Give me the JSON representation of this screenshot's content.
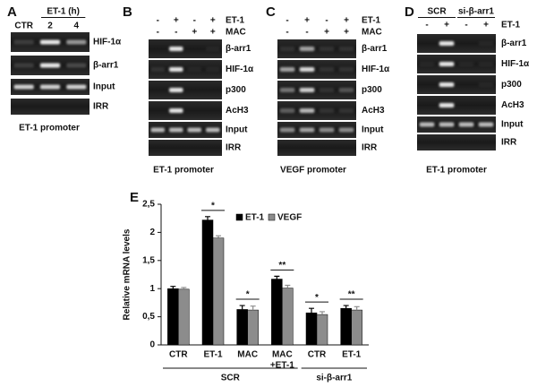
{
  "panels": [
    {
      "letter": "A",
      "title": "ET-1 (h)",
      "lanes": [
        "CTR",
        "2",
        "4"
      ],
      "rows": [
        "HIF-1α",
        "β-arr1",
        "Input",
        "IRR"
      ],
      "footer": "ET-1 promoter"
    },
    {
      "letter": "B",
      "conditions": [
        {
          "label": "ET-1",
          "signs": [
            "-",
            "+",
            "-",
            "+"
          ]
        },
        {
          "label": "MAC",
          "signs": [
            "-",
            "-",
            "+",
            "+"
          ]
        }
      ],
      "rows": [
        "β-arr1",
        "HIF-1α",
        "p300",
        "AcH3",
        "Input",
        "IRR"
      ],
      "footer": "ET-1 promoter"
    },
    {
      "letter": "C",
      "conditions": [
        {
          "label": "ET-1",
          "signs": [
            "-",
            "+",
            "-",
            "+"
          ]
        },
        {
          "label": "MAC",
          "signs": [
            "-",
            "-",
            "+",
            "+"
          ]
        }
      ],
      "rows": [
        "β-arr1",
        "HIF-1α",
        "p300",
        "AcH3",
        "Input",
        "IRR"
      ],
      "footer": "VEGF promoter"
    },
    {
      "letter": "D",
      "groups": [
        "SCR",
        "si-β-arr1"
      ],
      "conditions": [
        {
          "label": "ET-1",
          "signs": [
            "-",
            "+",
            "-",
            "+"
          ]
        }
      ],
      "rows": [
        "β-arr1",
        "HIF-1α",
        "p300",
        "AcH3",
        "Input",
        "IRR"
      ],
      "footer": "ET-1 promoter"
    }
  ],
  "chart_data": {
    "type": "bar",
    "letter": "E",
    "y_label": "Relative mRNA levels",
    "categories": [
      "CTR",
      "ET-1",
      "MAC",
      [
        "MAC",
        "+ET-1"
      ],
      "CTR",
      "ET-1"
    ],
    "group_labels": [
      "SCR",
      "SCR",
      "SCR",
      "SCR",
      "si-β-arr1",
      "si-β-arr1"
    ],
    "significance": [
      null,
      "*",
      "*",
      "**",
      "*",
      "**"
    ],
    "series": [
      {
        "name": "ET-1",
        "color": "#000000",
        "values": [
          1.0,
          2.22,
          0.63,
          1.17,
          0.57,
          0.65
        ],
        "errors": [
          0.04,
          0.06,
          0.07,
          0.05,
          0.08,
          0.05
        ]
      },
      {
        "name": "VEGF",
        "color": "#8c8c8c",
        "values": [
          0.99,
          1.9,
          0.62,
          1.01,
          0.54,
          0.62
        ],
        "errors": [
          0.03,
          0.04,
          0.07,
          0.05,
          0.05,
          0.06
        ]
      }
    ],
    "ylim": [
      0,
      2.5
    ],
    "yticks": [
      0,
      {
        "value": 0.5,
        "label": "0,5"
      },
      1,
      {
        "value": 1.5,
        "label": "1,5"
      },
      2,
      {
        "value": 2.5,
        "label": "2,5"
      }
    ]
  }
}
